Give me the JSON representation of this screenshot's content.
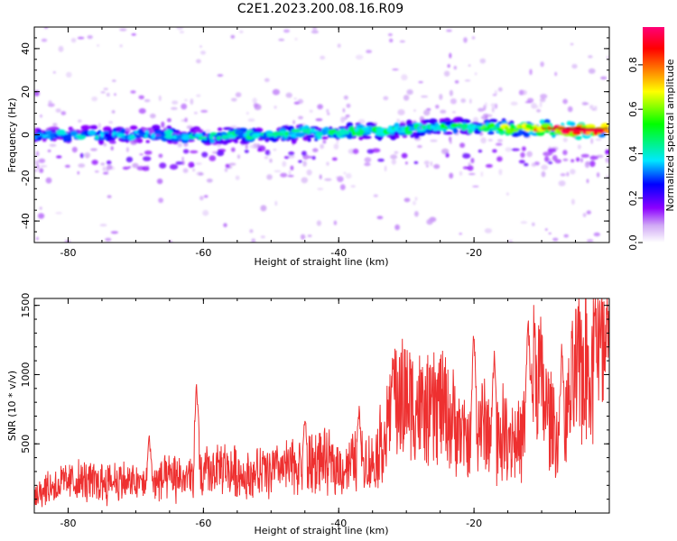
{
  "figure": {
    "title": "C2E1.2023.200.08.16.R09"
  },
  "chart_data": [
    {
      "type": "heatmap",
      "xlabel": "Height of straight line (km)",
      "ylabel": "Frequency (Hz)",
      "xlim": [
        -85,
        0
      ],
      "ylim": [
        -50,
        50
      ],
      "xticks": [
        -80,
        -60,
        -40,
        -20
      ],
      "yticks": [
        -40,
        -20,
        0,
        20,
        40
      ],
      "xtick_labels": [
        "-80",
        "-60",
        "-40",
        "-20"
      ],
      "ytick_labels": [
        "-40",
        "-20",
        "0",
        "20",
        "40"
      ],
      "ridge": {
        "x": [
          -85,
          -80,
          -75,
          -70,
          -65,
          -60,
          -55,
          -50,
          -45,
          -40,
          -35,
          -30,
          -25,
          -20,
          -15,
          -10,
          -5,
          0
        ],
        "y": [
          0,
          0,
          0,
          0,
          0,
          -1,
          0,
          0,
          1,
          1,
          2,
          2,
          4,
          4,
          3,
          3,
          2,
          2
        ],
        "amplitude": [
          0.3,
          0.35,
          0.35,
          0.35,
          0.35,
          0.4,
          0.4,
          0.4,
          0.45,
          0.45,
          0.45,
          0.45,
          0.45,
          0.5,
          0.6,
          0.75,
          0.9,
          0.95
        ]
      },
      "colorbar": {
        "label": "Normalized spectral amplitude",
        "range": [
          0,
          0.97
        ],
        "ticks": [
          0.0,
          0.2,
          0.4,
          0.6,
          0.8
        ],
        "tick_labels": [
          "0.0",
          "0.2",
          "0.4",
          "0.6",
          "0.8"
        ],
        "colors": [
          "#ffffff",
          "#c8a0f0",
          "#8c00ff",
          "#0000ff",
          "#00e8ff",
          "#00ff00",
          "#ffff00",
          "#ff8000",
          "#ff0000",
          "#ff0078"
        ]
      }
    },
    {
      "type": "line",
      "xlabel": "Height of straight line (km)",
      "ylabel": "SNR (10 * v/v)",
      "xlim": [
        -85,
        0
      ],
      "ylim": [
        0,
        1550
      ],
      "xticks": [
        -80,
        -60,
        -40,
        -20
      ],
      "yticks": [
        500,
        1000,
        1500
      ],
      "xtick_labels": [
        "-80",
        "-60",
        "-40",
        "-20"
      ],
      "ytick_labels": [
        "500",
        "1000",
        "1500"
      ],
      "series": [
        {
          "color": "#ee3030",
          "x": [
            -85,
            -82,
            -79,
            -76,
            -73,
            -70,
            -67,
            -64,
            -61,
            -59,
            -57,
            -55,
            -53,
            -51,
            -49,
            -47,
            -45,
            -43,
            -41,
            -39,
            -37,
            -35,
            -33,
            -31,
            -29,
            -27,
            -25,
            -23,
            -21,
            -19,
            -17,
            -15,
            -13,
            -11,
            -9,
            -7,
            -5,
            -3,
            -1,
            0
          ],
          "y": [
            150,
            200,
            230,
            220,
            240,
            210,
            230,
            250,
            260,
            300,
            320,
            290,
            270,
            300,
            310,
            330,
            350,
            380,
            350,
            320,
            400,
            350,
            600,
            850,
            800,
            700,
            800,
            650,
            500,
            650,
            550,
            600,
            500,
            1100,
            700,
            500,
            1000,
            1100,
            1100,
            1120
          ],
          "spikes": [
            [
              -68,
              580
            ],
            [
              -61,
              990
            ],
            [
              -45,
              760
            ],
            [
              -37,
              820
            ],
            [
              -32,
              1200
            ],
            [
              -20,
              1440
            ],
            [
              -17,
              1280
            ],
            [
              -12,
              1520
            ],
            [
              -7,
              1300
            ],
            [
              -2,
              1340
            ]
          ]
        }
      ]
    }
  ]
}
